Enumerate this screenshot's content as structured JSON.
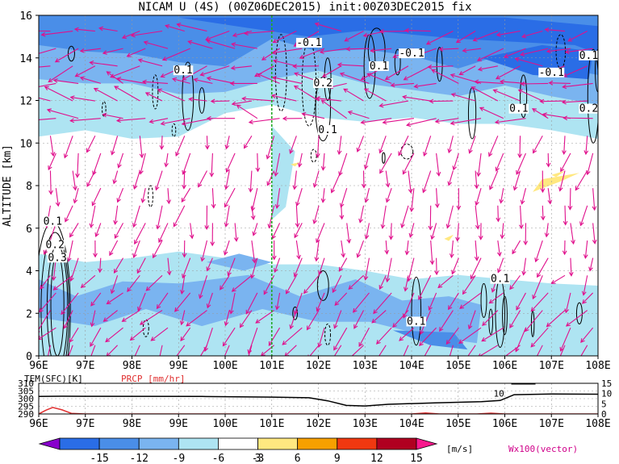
{
  "chart_data": [
    {
      "type": "heatmap",
      "title": "NICAM U (4S) (00Z06DEC2015) init:00Z03DEC2015 fix",
      "xlabel": "",
      "ylabel": "ALTITUDE [km]",
      "xlim": [
        96,
        108
      ],
      "ylim": [
        0,
        16
      ],
      "x_ticks": [
        "96E",
        "97E",
        "98E",
        "99E",
        "100E",
        "101E",
        "102E",
        "103E",
        "104E",
        "105E",
        "106E",
        "107E",
        "108E"
      ],
      "y_ticks": [
        "0",
        "2",
        "4",
        "6",
        "8",
        "10",
        "12",
        "14",
        "16"
      ],
      "grid": true,
      "marker_line_lon": 101,
      "contour_labels": [
        {
          "text": "-0.1",
          "x": 101.8,
          "y": 14.6
        },
        {
          "text": "0.1",
          "x": 99.1,
          "y": 13.3
        },
        {
          "text": "-0.1",
          "x": 104.0,
          "y": 14.1
        },
        {
          "text": "0.2",
          "x": 102.1,
          "y": 12.7
        },
        {
          "text": "0.1",
          "x": 103.3,
          "y": 13.5
        },
        {
          "text": "-0.1",
          "x": 107.0,
          "y": 13.2
        },
        {
          "text": "0.1",
          "x": 107.8,
          "y": 14.0
        },
        {
          "text": "0.1",
          "x": 106.3,
          "y": 11.5
        },
        {
          "text": "0.2",
          "x": 107.8,
          "y": 11.5
        },
        {
          "text": "0.1",
          "x": 102.2,
          "y": 10.5
        },
        {
          "text": "0.1",
          "x": 96.3,
          "y": 6.2
        },
        {
          "text": "0.2",
          "x": 96.35,
          "y": 5.1
        },
        {
          "text": "0.3",
          "x": 96.4,
          "y": 4.5
        },
        {
          "text": "0.1",
          "x": 105.9,
          "y": 3.5
        },
        {
          "text": "0.1",
          "x": 104.1,
          "y": 1.5
        }
      ],
      "colorbar": {
        "levels": [
          "-15",
          "-12",
          "-9",
          "-6",
          "-3",
          "3",
          "6",
          "9",
          "12",
          "15"
        ],
        "colors": [
          "#8800cc",
          "#2a6de6",
          "#4a8ee8",
          "#7ab4f0",
          "#aee4f2",
          "#ffffff",
          "#ffe880",
          "#f7a000",
          "#f03810",
          "#b00020",
          "#f8188c"
        ],
        "unit": "[m/s]",
        "vector_label": "Wx100(vector)"
      }
    },
    {
      "type": "line",
      "xlim": [
        96,
        108
      ],
      "left_axis_label": "TEM(SFC)[K]",
      "left_ticks": [
        "310",
        "305",
        "300",
        "295",
        "290"
      ],
      "right_axis_label": "PRCP [mm/hr]",
      "right_ticks": [
        "15",
        "10",
        "5",
        "0"
      ],
      "x_ticks": [
        "96E",
        "97E",
        "98E",
        "99E",
        "100E",
        "101E",
        "102E",
        "103E",
        "104E",
        "105E",
        "106E",
        "107E",
        "108E"
      ],
      "series": [
        {
          "name": "TEM(SFC)[K]",
          "color": "#000000",
          "x": [
            96.0,
            96.5,
            97.0,
            99.5,
            101.0,
            101.8,
            102.2,
            102.6,
            103.0,
            103.5,
            104.5,
            105.5,
            105.9,
            106.2,
            107.0,
            108.0
          ],
          "y": [
            301.4,
            301.6,
            301.5,
            301.4,
            301.0,
            300.6,
            298.6,
            295.6,
            295.2,
            296.3,
            297.2,
            298.0,
            298.8,
            302.6,
            303.0,
            302.9
          ]
        },
        {
          "name": "PRCP [mm/hr]",
          "color": "#e03030",
          "x": [
            96.0,
            96.15,
            96.3,
            96.5,
            96.7,
            97.0,
            104.0,
            104.3,
            104.6,
            105.4,
            105.7,
            106.0,
            108.0
          ],
          "y": [
            0.0,
            1.8,
            3.2,
            2.0,
            0.3,
            0.0,
            0.0,
            0.5,
            0.0,
            0.0,
            0.4,
            0.0,
            0.0
          ]
        }
      ],
      "annotation": {
        "text": "10",
        "x": 106.0,
        "y": 10
      }
    }
  ]
}
